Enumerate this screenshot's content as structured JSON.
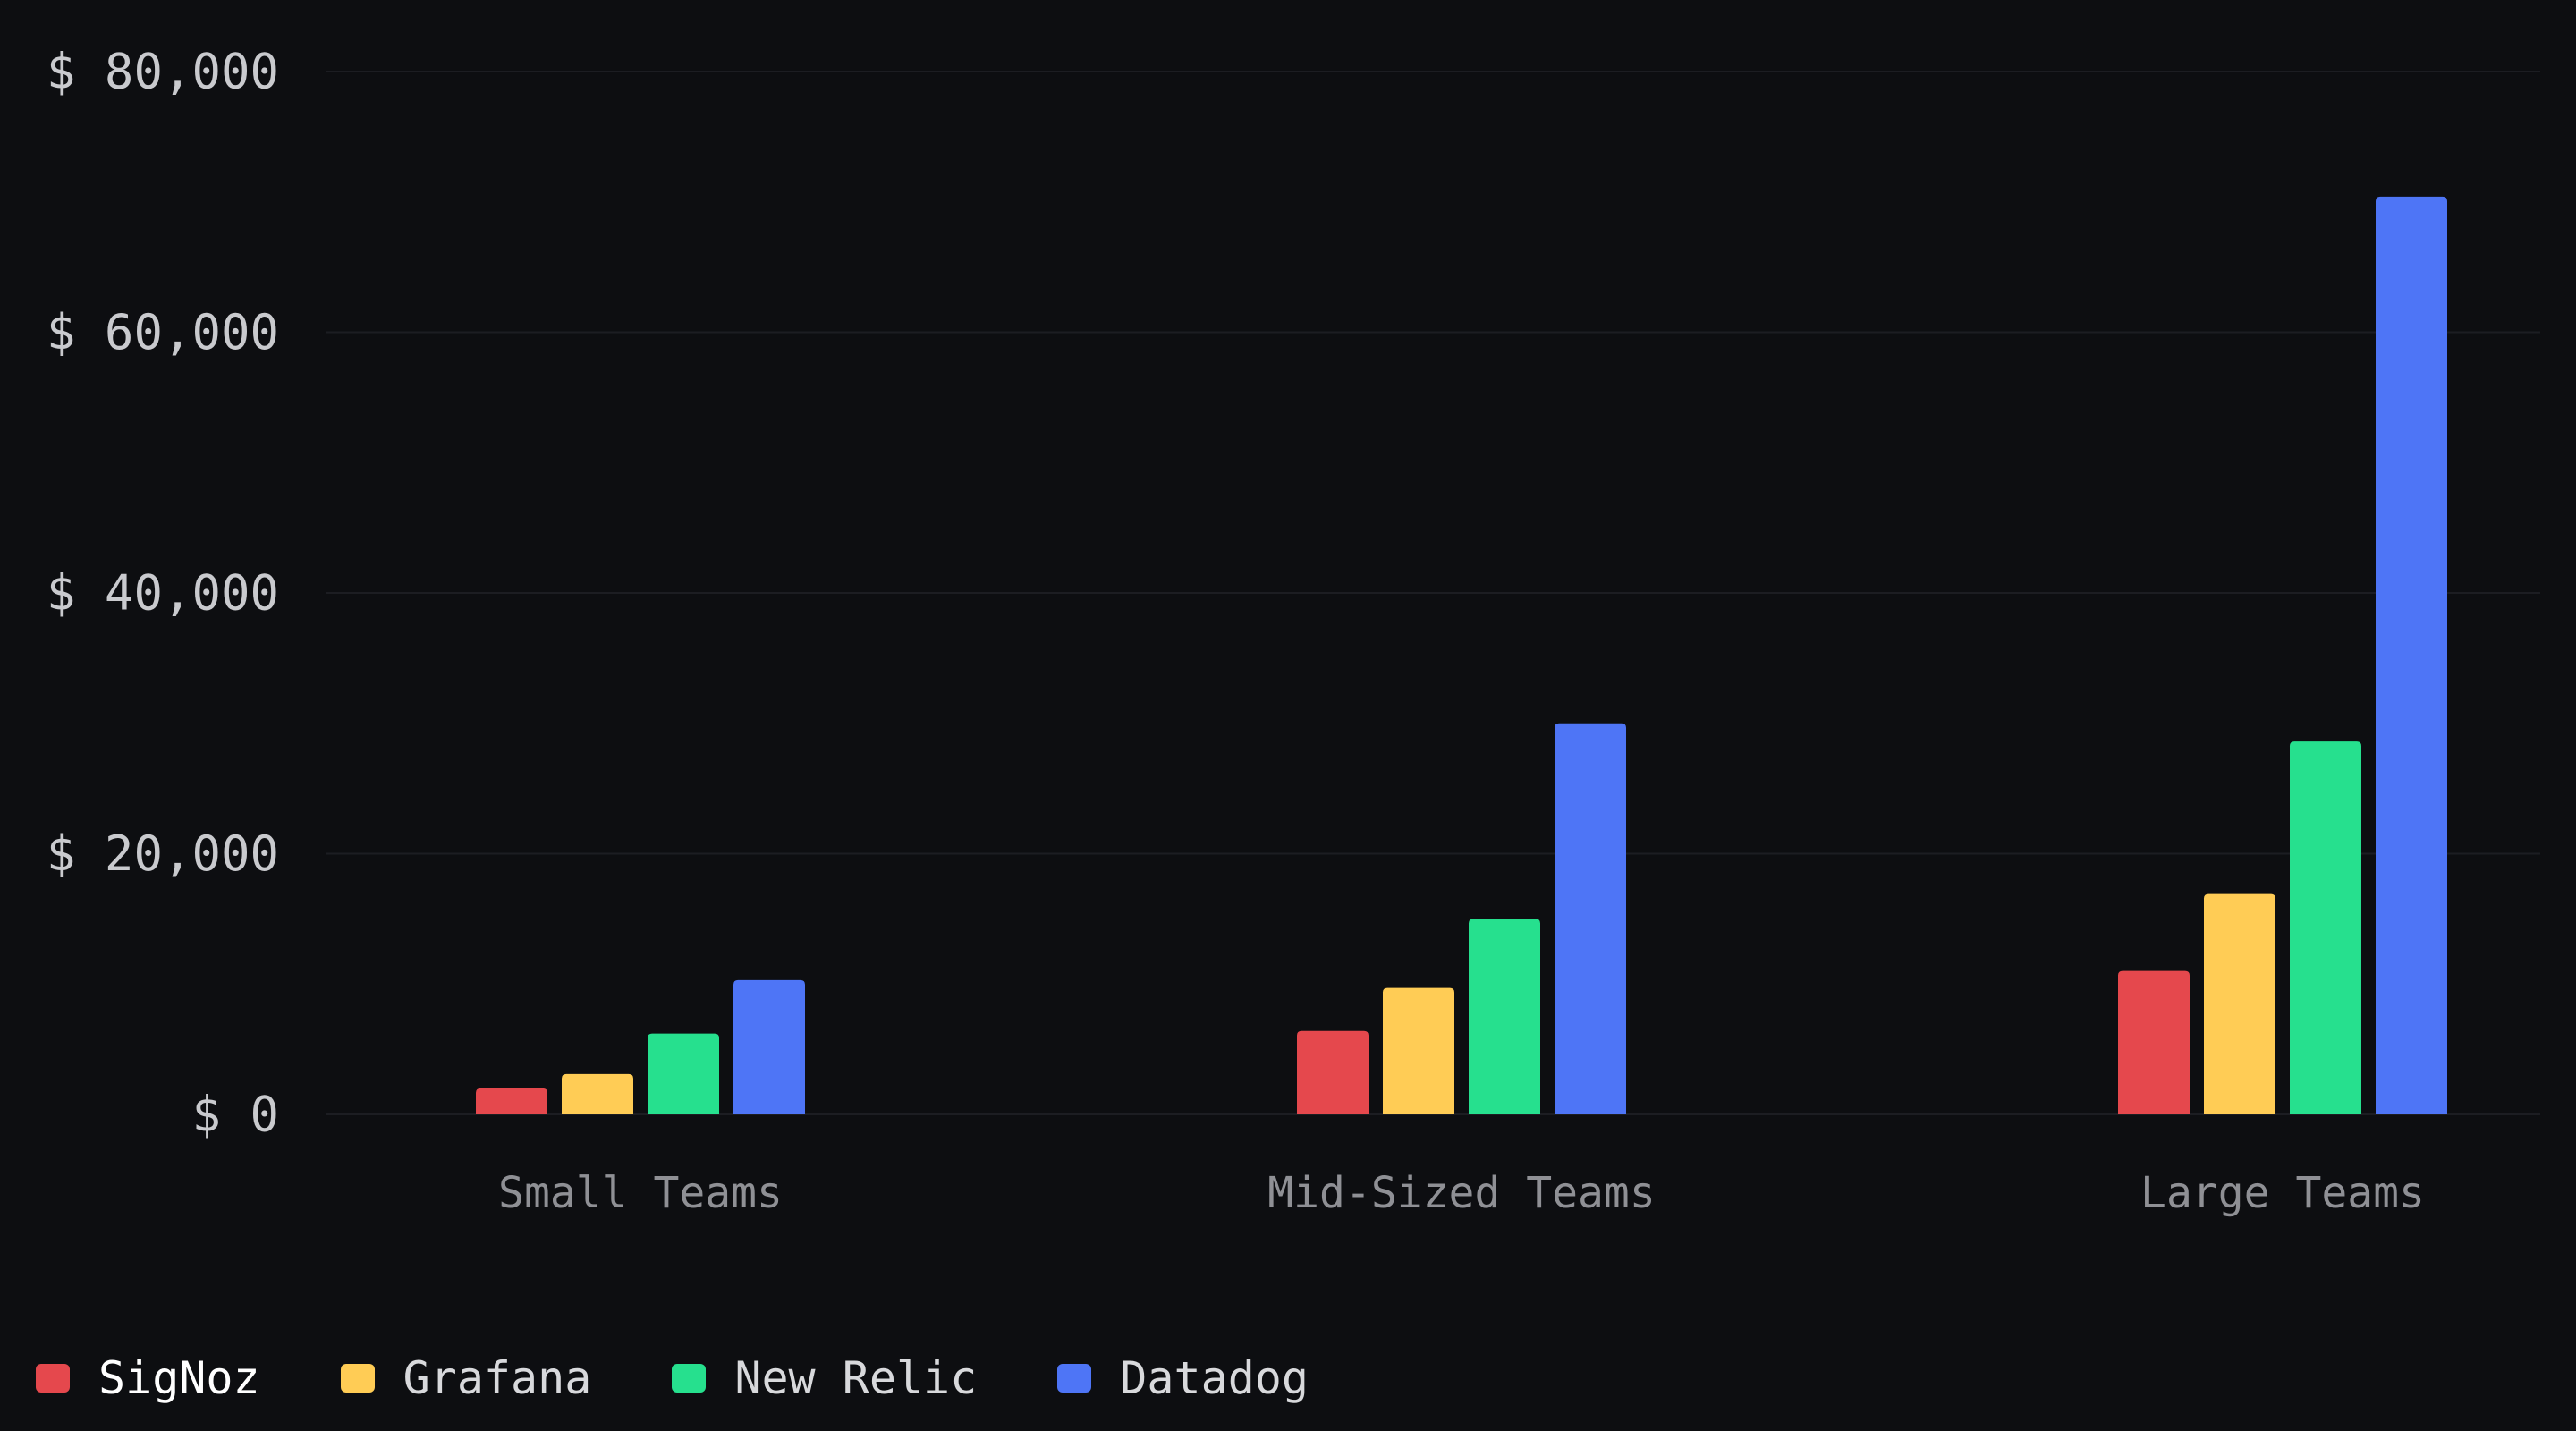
{
  "chart_data": {
    "type": "bar",
    "categories": [
      "Small Teams",
      "Mid-Sized Teams",
      "Large Teams"
    ],
    "series": [
      {
        "name": "SigNoz",
        "color": "#e5484d",
        "values": [
          2000,
          6400,
          11000
        ]
      },
      {
        "name": "Grafana",
        "color": "#ffcc55",
        "values": [
          3100,
          9700,
          16900
        ]
      },
      {
        "name": "New Relic",
        "color": "#26e08e",
        "values": [
          6200,
          15000,
          28600
        ]
      },
      {
        "name": "Datadog",
        "color": "#4e75f6",
        "values": [
          10300,
          30000,
          70400
        ]
      }
    ],
    "yticks": [
      "$ 0",
      "$ 20,000",
      "$ 40,000",
      "$ 60,000",
      "$ 80,000"
    ],
    "ylim": [
      0,
      80000
    ],
    "grid": true,
    "legend_position": "bottom-left",
    "title": "",
    "xlabel": "",
    "ylabel": ""
  }
}
